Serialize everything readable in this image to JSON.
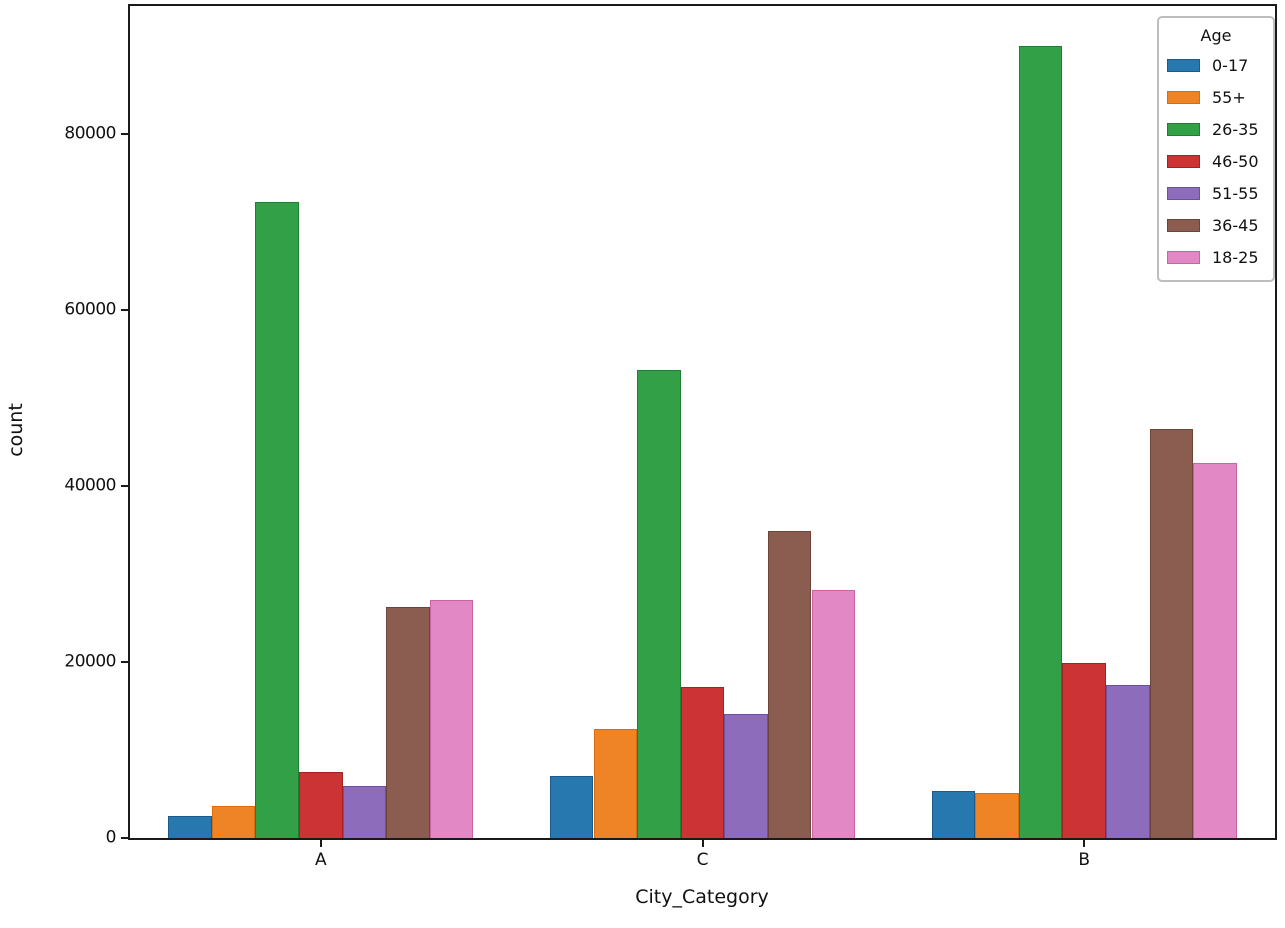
{
  "chart_data": {
    "type": "bar",
    "title": "",
    "xlabel": "City_Category",
    "ylabel": "count",
    "categories": [
      "A",
      "C",
      "B"
    ],
    "ytick_labels": [
      "0",
      "20000",
      "40000",
      "60000",
      "80000"
    ],
    "ytick_values": [
      0,
      20000,
      40000,
      60000,
      80000
    ],
    "ylim": [
      0,
      94500
    ],
    "grid": false,
    "bar_group_fraction": 0.8,
    "legend": {
      "title": "Age",
      "position": "upper-right"
    },
    "series": [
      {
        "name": "0-17",
        "color": "#2878b0",
        "edge": "#1b5a8a",
        "values": [
          2500,
          7000,
          5300
        ]
      },
      {
        "name": "55+",
        "color": "#ef8426",
        "edge": "#d96c10",
        "values": [
          3600,
          12400,
          5100
        ]
      },
      {
        "name": "26-35",
        "color": "#31a046",
        "edge": "#1f7e33",
        "values": [
          72200,
          53100,
          90000
        ]
      },
      {
        "name": "46-50",
        "color": "#cc3335",
        "edge": "#a32325",
        "values": [
          7500,
          17200,
          19900
        ]
      },
      {
        "name": "51-55",
        "color": "#8d6cbb",
        "edge": "#6f4f9e",
        "values": [
          5900,
          14100,
          17400
        ]
      },
      {
        "name": "36-45",
        "color": "#8a5d50",
        "edge": "#6d4438",
        "values": [
          26200,
          34900,
          46500
        ]
      },
      {
        "name": "18-25",
        "color": "#e288c4",
        "edge": "#c963a6",
        "values": [
          27000,
          28200,
          42600
        ]
      }
    ]
  },
  "colors": {
    "spine": "#1a1a1a",
    "text": "#111111",
    "background": "#ffffff",
    "legend_border": "#bdbdbd"
  }
}
